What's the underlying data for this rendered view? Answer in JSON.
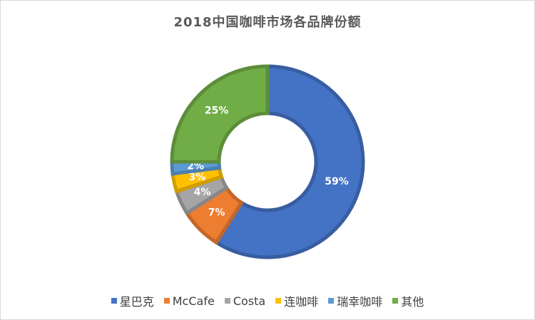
{
  "chart_data": {
    "type": "pie",
    "variant": "donut",
    "title": "2018中国咖啡市场各品牌份额",
    "categories": [
      "星巴克",
      "McCafe",
      "Costa",
      "连咖啡",
      "瑞幸咖啡",
      "其他"
    ],
    "values": [
      59,
      7,
      4,
      3,
      2,
      25
    ],
    "value_labels": [
      "59%",
      "7%",
      "4%",
      "3%",
      "2%",
      "25%"
    ],
    "colors": [
      "#4472c4",
      "#ed7d31",
      "#a5a5a5",
      "#ffc000",
      "#5b9bd5",
      "#70ad47"
    ],
    "legend": "bottom"
  }
}
